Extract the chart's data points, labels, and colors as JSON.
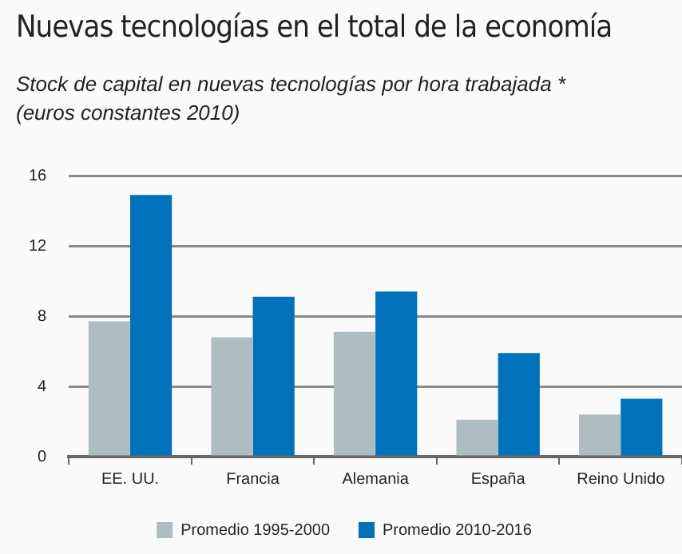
{
  "chart_data": {
    "type": "bar",
    "title": "Nuevas tecnologías en el total de la economía",
    "subtitle": "Stock de capital en nuevas tecnologías por hora trabajada *\n(euros constantes 2010)",
    "categories": [
      "EE. UU.",
      "Francia",
      "Alemania",
      "España",
      "Reino Unido"
    ],
    "series": [
      {
        "name": "Promedio 1995-2000",
        "color": "#aebdbf",
        "values": [
          7.7,
          6.8,
          7.1,
          2.1,
          2.4
        ]
      },
      {
        "name": "Promedio 2010-2016",
        "color": "#0071bb",
        "values": [
          14.9,
          9.1,
          9.4,
          5.9,
          3.3
        ]
      }
    ],
    "ylim": [
      0,
      16
    ],
    "yticks": [
      0,
      4,
      8,
      12,
      16
    ],
    "grid": "y",
    "legend": "bottom"
  }
}
